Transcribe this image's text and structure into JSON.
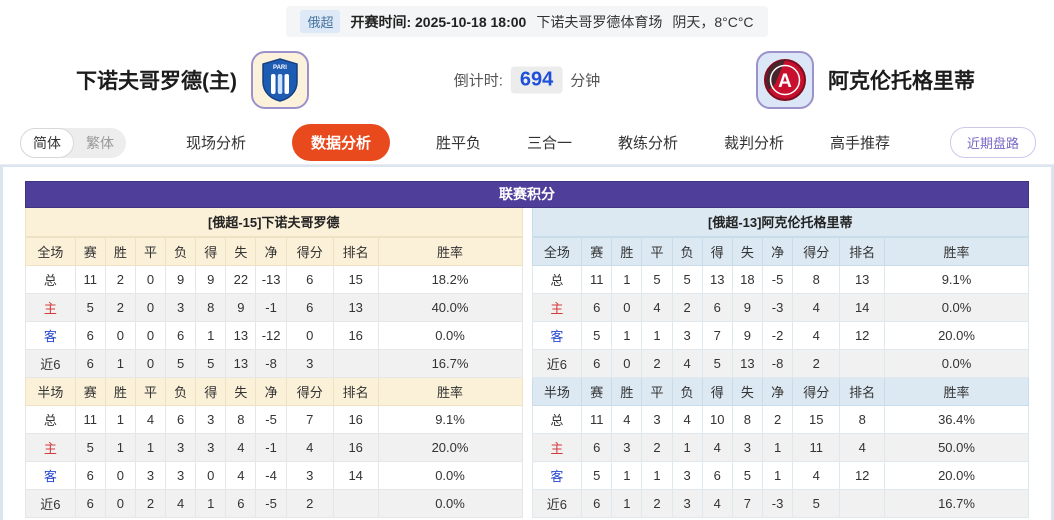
{
  "top_bar": {
    "league_badge": "俄超",
    "kickoff_label": "开赛时间:",
    "kickoff_time": "2025-10-18 18:00",
    "venue": "下诺夫哥罗德体育场",
    "weather": "阴天，8°C°C"
  },
  "match": {
    "home_team": "下诺夫哥罗德(主)",
    "away_team": "阿克伦托格里蒂",
    "countdown_label": "倒计时:",
    "countdown_value": "694",
    "countdown_unit": "分钟"
  },
  "lang_toggle": {
    "simplified": "简体",
    "traditional": "繁体"
  },
  "tabs": [
    {
      "label": "现场分析",
      "active": false
    },
    {
      "label": "数据分析",
      "active": true
    },
    {
      "label": "胜平负",
      "active": false
    },
    {
      "label": "三合一",
      "active": false
    },
    {
      "label": "教练分析",
      "active": false
    },
    {
      "label": "裁判分析",
      "active": false
    },
    {
      "label": "高手推荐",
      "active": false
    }
  ],
  "recent_button_label": "近期盘路",
  "colors": {
    "accent_purple": "#4f3f9b",
    "active_tab_orange": "#e8491d",
    "home_header_bg": "#fbf0d8",
    "away_header_bg": "#dce8f2",
    "host_row_red": "#d43c3c",
    "guest_row_blue": "#2749d2",
    "countdown_blue": "#1d4fd8"
  },
  "standings": {
    "title": "联赛积分",
    "home": {
      "header": "[俄超-15]下诺夫哥罗德",
      "full": {
        "columns": [
          "全场",
          "赛",
          "胜",
          "平",
          "负",
          "得",
          "失",
          "净",
          "得分",
          "排名",
          "胜率"
        ],
        "rows": [
          {
            "label": "总",
            "values": [
              "11",
              "2",
              "0",
              "9",
              "9",
              "22",
              "-13",
              "6",
              "15",
              "18.2%"
            ]
          },
          {
            "label": "主",
            "values": [
              "5",
              "2",
              "0",
              "3",
              "8",
              "9",
              "-1",
              "6",
              "13",
              "40.0%"
            ]
          },
          {
            "label": "客",
            "values": [
              "6",
              "0",
              "0",
              "6",
              "1",
              "13",
              "-12",
              "0",
              "16",
              "0.0%"
            ]
          },
          {
            "label": "近6",
            "values": [
              "6",
              "1",
              "0",
              "5",
              "5",
              "13",
              "-8",
              "3",
              "",
              "16.7%"
            ]
          }
        ]
      },
      "half": {
        "columns": [
          "半场",
          "赛",
          "胜",
          "平",
          "负",
          "得",
          "失",
          "净",
          "得分",
          "排名",
          "胜率"
        ],
        "rows": [
          {
            "label": "总",
            "values": [
              "11",
              "1",
              "4",
              "6",
              "3",
              "8",
              "-5",
              "7",
              "16",
              "9.1%"
            ]
          },
          {
            "label": "主",
            "values": [
              "5",
              "1",
              "1",
              "3",
              "3",
              "4",
              "-1",
              "4",
              "16",
              "20.0%"
            ]
          },
          {
            "label": "客",
            "values": [
              "6",
              "0",
              "3",
              "3",
              "0",
              "4",
              "-4",
              "3",
              "14",
              "0.0%"
            ]
          },
          {
            "label": "近6",
            "values": [
              "6",
              "0",
              "2",
              "4",
              "1",
              "6",
              "-5",
              "2",
              "",
              "0.0%"
            ]
          }
        ]
      }
    },
    "away": {
      "header": "[俄超-13]阿克伦托格里蒂",
      "full": {
        "columns": [
          "全场",
          "赛",
          "胜",
          "平",
          "负",
          "得",
          "失",
          "净",
          "得分",
          "排名",
          "胜率"
        ],
        "rows": [
          {
            "label": "总",
            "values": [
              "11",
              "1",
              "5",
              "5",
              "13",
              "18",
              "-5",
              "8",
              "13",
              "9.1%"
            ]
          },
          {
            "label": "主",
            "values": [
              "6",
              "0",
              "4",
              "2",
              "6",
              "9",
              "-3",
              "4",
              "14",
              "0.0%"
            ]
          },
          {
            "label": "客",
            "values": [
              "5",
              "1",
              "1",
              "3",
              "7",
              "9",
              "-2",
              "4",
              "12",
              "20.0%"
            ]
          },
          {
            "label": "近6",
            "values": [
              "6",
              "0",
              "2",
              "4",
              "5",
              "13",
              "-8",
              "2",
              "",
              "0.0%"
            ]
          }
        ]
      },
      "half": {
        "columns": [
          "半场",
          "赛",
          "胜",
          "平",
          "负",
          "得",
          "失",
          "净",
          "得分",
          "排名",
          "胜率"
        ],
        "rows": [
          {
            "label": "总",
            "values": [
              "11",
              "4",
              "3",
              "4",
              "10",
              "8",
              "2",
              "15",
              "8",
              "36.4%"
            ]
          },
          {
            "label": "主",
            "values": [
              "6",
              "3",
              "2",
              "1",
              "4",
              "3",
              "1",
              "11",
              "4",
              "50.0%"
            ]
          },
          {
            "label": "客",
            "values": [
              "5",
              "1",
              "1",
              "3",
              "6",
              "5",
              "1",
              "4",
              "12",
              "20.0%"
            ]
          },
          {
            "label": "近6",
            "values": [
              "6",
              "1",
              "2",
              "3",
              "4",
              "7",
              "-3",
              "5",
              "",
              "16.7%"
            ]
          }
        ]
      }
    }
  }
}
